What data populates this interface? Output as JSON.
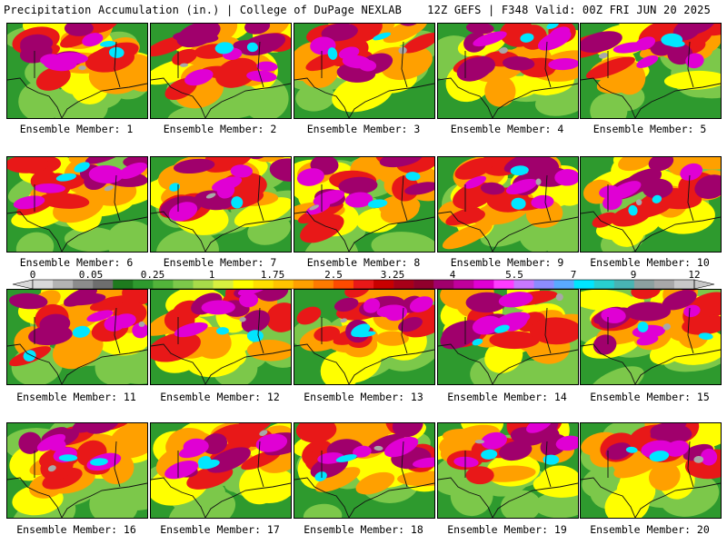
{
  "header": {
    "title": "Precipitation Accumulation (in.) | College of DuPage NEXLAB",
    "run_info": "12Z GEFS | F348 Valid: 00Z FRI JUN 20 2025"
  },
  "members": [
    {
      "label": "Ensemble Member: 1"
    },
    {
      "label": "Ensemble Member: 2"
    },
    {
      "label": "Ensemble Member: 3"
    },
    {
      "label": "Ensemble Member: 4"
    },
    {
      "label": "Ensemble Member: 5"
    },
    {
      "label": "Ensemble Member: 6"
    },
    {
      "label": "Ensemble Member: 7"
    },
    {
      "label": "Ensemble Member: 8"
    },
    {
      "label": "Ensemble Member: 9"
    },
    {
      "label": "Ensemble Member: 10"
    },
    {
      "label": "Ensemble Member: 11"
    },
    {
      "label": "Ensemble Member: 12"
    },
    {
      "label": "Ensemble Member: 13"
    },
    {
      "label": "Ensemble Member: 14"
    },
    {
      "label": "Ensemble Member: 15"
    },
    {
      "label": "Ensemble Member: 16"
    },
    {
      "label": "Ensemble Member: 17"
    },
    {
      "label": "Ensemble Member: 18"
    },
    {
      "label": "Ensemble Member: 19"
    },
    {
      "label": "Ensemble Member: 20"
    }
  ],
  "legend": {
    "tick_labels": [
      "0",
      "0.05",
      "0.25",
      "1",
      "1.75",
      "2.5",
      "3.25",
      "4",
      "5.5",
      "7",
      "9",
      "12"
    ],
    "colors": [
      "#d9d9d9",
      "#b3b3b3",
      "#8c8c8c",
      "#6e6e6e",
      "#1e7a1e",
      "#2e9a2e",
      "#52b43a",
      "#7cc84a",
      "#a8dc4a",
      "#d8f040",
      "#ffff00",
      "#ffe000",
      "#ffc400",
      "#ffa000",
      "#ff7a00",
      "#ff4a00",
      "#e81818",
      "#c80000",
      "#a80018",
      "#90002c",
      "#a0006c",
      "#c0009c",
      "#e000d4",
      "#ff3cff",
      "#c878ff",
      "#8c8cff",
      "#5aaaff",
      "#00e6ff",
      "#28d0d0",
      "#48b4b4",
      "#8ca0a0",
      "#a8a8a8",
      "#c8c8c8"
    ]
  }
}
